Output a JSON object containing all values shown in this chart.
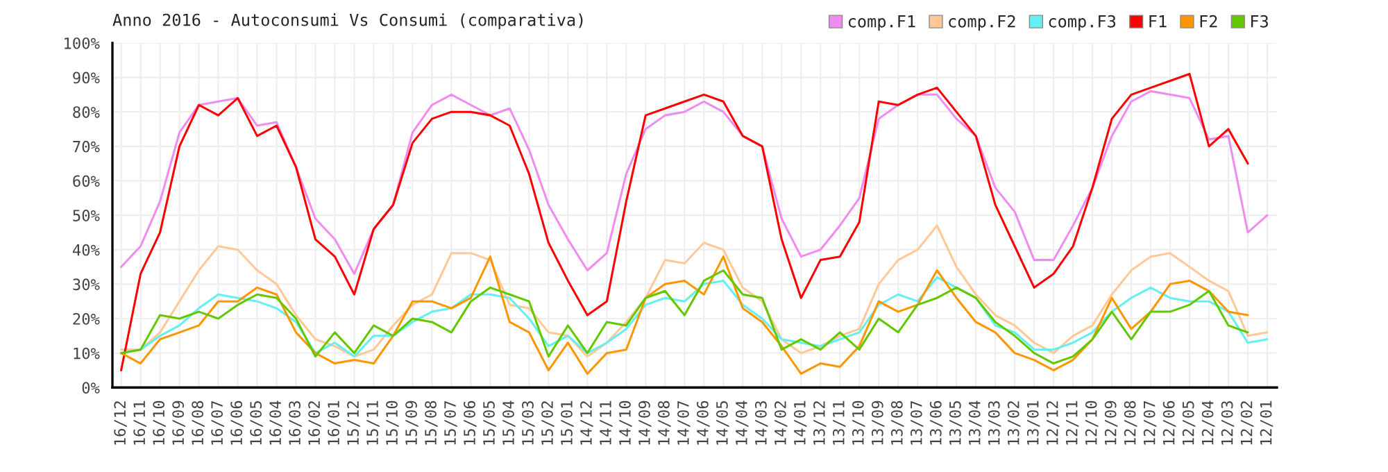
{
  "chart_data": {
    "type": "line",
    "title": "Anno 2016 - Autoconsumi Vs Consumi (comparativa)",
    "categories": [
      "16/12",
      "16/11",
      "16/10",
      "16/09",
      "16/08",
      "16/07",
      "16/06",
      "16/05",
      "16/04",
      "16/03",
      "16/02",
      "16/01",
      "15/12",
      "15/11",
      "15/10",
      "15/09",
      "15/08",
      "15/07",
      "15/06",
      "15/05",
      "15/04",
      "15/03",
      "15/02",
      "15/01",
      "14/12",
      "14/11",
      "14/10",
      "14/09",
      "14/08",
      "14/07",
      "14/06",
      "14/05",
      "14/04",
      "14/03",
      "14/02",
      "14/01",
      "13/12",
      "13/11",
      "13/10",
      "13/09",
      "13/08",
      "13/07",
      "13/06",
      "13/05",
      "13/04",
      "13/03",
      "13/02",
      "13/01",
      "12/12",
      "12/11",
      "12/10",
      "12/09",
      "12/08",
      "12/07",
      "12/06",
      "12/05",
      "12/04",
      "12/03",
      "12/02",
      "12/01"
    ],
    "series": [
      {
        "name": "comp.F1",
        "color": "#f08cf0",
        "values": [
          35,
          41,
          54,
          74,
          82,
          83,
          84,
          76,
          77,
          64,
          49,
          43,
          33,
          46,
          53,
          74,
          82,
          85,
          82,
          79,
          81,
          69,
          53,
          43,
          34,
          39,
          62,
          75,
          79,
          80,
          83,
          80,
          73,
          70,
          49,
          38,
          40,
          47,
          55,
          78,
          82,
          85,
          85,
          78,
          73,
          58,
          51,
          37,
          37,
          47,
          58,
          73,
          83,
          86,
          85,
          84,
          72,
          73,
          45,
          50
        ]
      },
      {
        "name": "comp.F2",
        "color": "#ffc896",
        "values": [
          11,
          11,
          16,
          25,
          34,
          41,
          40,
          34,
          30,
          21,
          14,
          12,
          9,
          11,
          18,
          24,
          27,
          39,
          39,
          37,
          24,
          23,
          16,
          15,
          9,
          13,
          19,
          26,
          37,
          36,
          42,
          40,
          29,
          25,
          14,
          10,
          12,
          15,
          17,
          30,
          37,
          40,
          47,
          35,
          27,
          21,
          18,
          13,
          10,
          15,
          18,
          27,
          34,
          38,
          39,
          35,
          31,
          28,
          15,
          16
        ]
      },
      {
        "name": "comp.F3",
        "color": "#64f0f0",
        "values": [
          10,
          11,
          15,
          18,
          23,
          27,
          26,
          25,
          23,
          19,
          10,
          13,
          9,
          15,
          15,
          19,
          22,
          23,
          27,
          27,
          26,
          20,
          12,
          15,
          10,
          13,
          17,
          24,
          26,
          25,
          30,
          31,
          24,
          20,
          14,
          13,
          12,
          14,
          16,
          24,
          27,
          25,
          32,
          29,
          26,
          18,
          16,
          11,
          11,
          13,
          16,
          22,
          26,
          29,
          26,
          25,
          25,
          22,
          13,
          14
        ]
      },
      {
        "name": "F1",
        "color": "#ff0000",
        "values": [
          5,
          33,
          45,
          70,
          82,
          79,
          84,
          73,
          76,
          64,
          43,
          38,
          27,
          46,
          53,
          71,
          78,
          80,
          80,
          79,
          76,
          62,
          42,
          31,
          21,
          25,
          54,
          79,
          81,
          83,
          85,
          83,
          73,
          70,
          43,
          26,
          37,
          38,
          48,
          83,
          82,
          85,
          87,
          80,
          73,
          53,
          41,
          29,
          33,
          41,
          58,
          78,
          85,
          87,
          89,
          91,
          70,
          75,
          65,
          null
        ]
      },
      {
        "name": "F2",
        "color": "#ff9600",
        "values": [
          10,
          7,
          14,
          16,
          18,
          25,
          25,
          29,
          27,
          16,
          10,
          7,
          8,
          7,
          15,
          25,
          25,
          23,
          26,
          38,
          19,
          16,
          5,
          13,
          4,
          10,
          11,
          26,
          30,
          31,
          27,
          38,
          23,
          19,
          12,
          4,
          7,
          6,
          12,
          25,
          22,
          24,
          34,
          26,
          19,
          16,
          10,
          8,
          5,
          8,
          14,
          26,
          17,
          22,
          30,
          31,
          28,
          22,
          21,
          null
        ]
      },
      {
        "name": "F3",
        "color": "#64c800",
        "values": [
          10,
          11,
          21,
          20,
          22,
          20,
          24,
          27,
          26,
          20,
          9,
          16,
          10,
          18,
          15,
          20,
          19,
          16,
          25,
          29,
          27,
          25,
          9,
          18,
          10,
          19,
          18,
          26,
          28,
          21,
          31,
          34,
          27,
          26,
          11,
          14,
          11,
          16,
          11,
          20,
          16,
          24,
          26,
          29,
          26,
          19,
          15,
          10,
          7,
          9,
          14,
          22,
          14,
          22,
          22,
          24,
          28,
          18,
          16,
          null
        ]
      }
    ],
    "ylim": [
      0,
      100
    ],
    "yticks": [
      {
        "value": 0,
        "label": "0%"
      },
      {
        "value": 10,
        "label": "10%"
      },
      {
        "value": 20,
        "label": "20%"
      },
      {
        "value": 30,
        "label": "30%"
      },
      {
        "value": 40,
        "label": "40%"
      },
      {
        "value": 50,
        "label": "50%"
      },
      {
        "value": 60,
        "label": "60%"
      },
      {
        "value": 70,
        "label": "70%"
      },
      {
        "value": 80,
        "label": "80%"
      },
      {
        "value": 90,
        "label": "90%"
      },
      {
        "value": 100,
        "label": "100%"
      }
    ],
    "grid": true,
    "legend": "top right"
  }
}
